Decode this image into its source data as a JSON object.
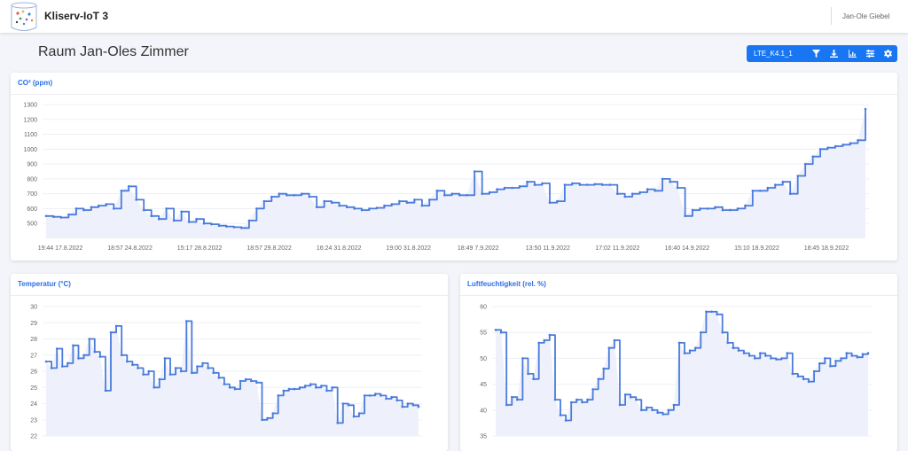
{
  "app": {
    "title": "Kliserv-IoT 3",
    "user": "Jan-Ole Giebel"
  },
  "page": {
    "title": "Raum Jan-Oles Zimmer"
  },
  "toolbar": {
    "device": "LTE_K4.1_1",
    "buttons": [
      "filter-icon",
      "download-icon",
      "bar-chart-icon",
      "list-icon",
      "gear-icon"
    ]
  },
  "colors": {
    "accent": "#1976f2",
    "line": "#4a7bdc",
    "fill": "#eef1fb",
    "title": "#2a6ee8"
  },
  "chart_data": [
    {
      "type": "line",
      "title": "CO² (ppm)",
      "ylim": [
        400,
        1300
      ],
      "yticks": [
        1300,
        1200,
        1100,
        1000,
        900,
        800,
        700,
        600,
        500
      ],
      "xticks": [
        "19:44 17.8.2022",
        "18:57 24.8.2022",
        "15:17 28.8.2022",
        "18:57 29.8.2022",
        "16:24 31.8.2022",
        "19:00 31.8.2022",
        "18:49 7.9.2022",
        "13:50 11.9.2022",
        "17:02 11.9.2022",
        "16:40 14.9.2022",
        "15:10 18.9.2022",
        "18:45 18.9.2022"
      ],
      "series": [
        {
          "values": [
            550,
            545,
            540,
            560,
            600,
            590,
            610,
            620,
            630,
            600,
            720,
            750,
            660,
            590,
            550,
            530,
            600,
            520,
            580,
            510,
            530,
            500,
            495,
            485,
            480,
            475,
            470,
            520,
            600,
            650,
            680,
            700,
            690,
            690,
            700,
            680,
            610,
            650,
            640,
            620,
            610,
            600,
            590,
            600,
            605,
            620,
            630,
            650,
            640,
            660,
            620,
            660,
            720,
            690,
            700,
            690,
            690,
            850,
            700,
            710,
            730,
            740,
            740,
            750,
            780,
            760,
            770,
            640,
            650,
            760,
            770,
            760,
            760,
            765,
            760,
            760,
            700,
            680,
            700,
            710,
            730,
            720,
            800,
            780,
            740,
            550,
            590,
            600,
            600,
            610,
            590,
            590,
            600,
            620,
            720,
            720,
            740,
            760,
            780,
            700,
            820,
            900,
            950,
            1000,
            1010,
            1020,
            1030,
            1040,
            1060,
            1270
          ]
        }
      ]
    },
    {
      "type": "line",
      "title": "Temperatur (°C)",
      "ylim": [
        22,
        30
      ],
      "yticks": [
        30,
        29,
        28,
        27,
        26,
        25,
        24,
        23,
        22
      ],
      "series": [
        {
          "values": [
            26.6,
            26.2,
            27.4,
            26.3,
            26.5,
            27.6,
            26.8,
            27.0,
            28.0,
            27.2,
            26.9,
            24.8,
            28.4,
            28.8,
            27.0,
            26.6,
            26.4,
            26.2,
            25.8,
            26.0,
            25.0,
            25.5,
            26.8,
            25.8,
            26.2,
            26.0,
            29.1,
            25.9,
            26.3,
            26.5,
            26.2,
            25.9,
            25.6,
            25.2,
            25.0,
            24.9,
            25.4,
            25.5,
            25.4,
            25.3,
            23.0,
            23.1,
            23.4,
            24.5,
            24.8,
            24.9,
            24.9,
            25.0,
            25.1,
            25.2,
            25.0,
            25.1,
            24.8,
            25.0,
            22.8,
            24.0,
            23.9,
            23.2,
            23.4,
            24.5,
            24.5,
            24.6,
            24.5,
            24.3,
            24.4,
            24.2,
            23.8,
            24.0,
            23.9,
            23.8
          ]
        }
      ]
    },
    {
      "type": "line",
      "title": "Luftfeuchtigkeit (rel. %)",
      "ylim": [
        35,
        60
      ],
      "yticks": [
        60,
        55,
        50,
        45,
        40,
        35
      ],
      "series": [
        {
          "values": [
            55.5,
            55.0,
            41.0,
            42.5,
            42.0,
            50.0,
            47.0,
            46.0,
            53.0,
            53.5,
            54.5,
            42.0,
            39.0,
            38.0,
            41.5,
            42.0,
            41.5,
            42.0,
            44.0,
            46.0,
            48.0,
            52.0,
            53.5,
            41.0,
            43.0,
            42.5,
            42.0,
            40.0,
            40.5,
            40.0,
            39.5,
            39.2,
            40.0,
            41.0,
            53.0,
            51.0,
            51.5,
            52.0,
            55.0,
            59.0,
            59.0,
            58.5,
            55.0,
            53.0,
            52.0,
            51.5,
            51.0,
            50.5,
            50.0,
            51.0,
            50.5,
            50.0,
            49.8,
            50.0,
            51.0,
            47.0,
            46.5,
            46.0,
            45.5,
            47.5,
            49.0,
            50.0,
            48.5,
            49.5,
            50.0,
            51.0,
            50.5,
            50.2,
            50.8,
            51.0
          ]
        }
      ]
    }
  ]
}
